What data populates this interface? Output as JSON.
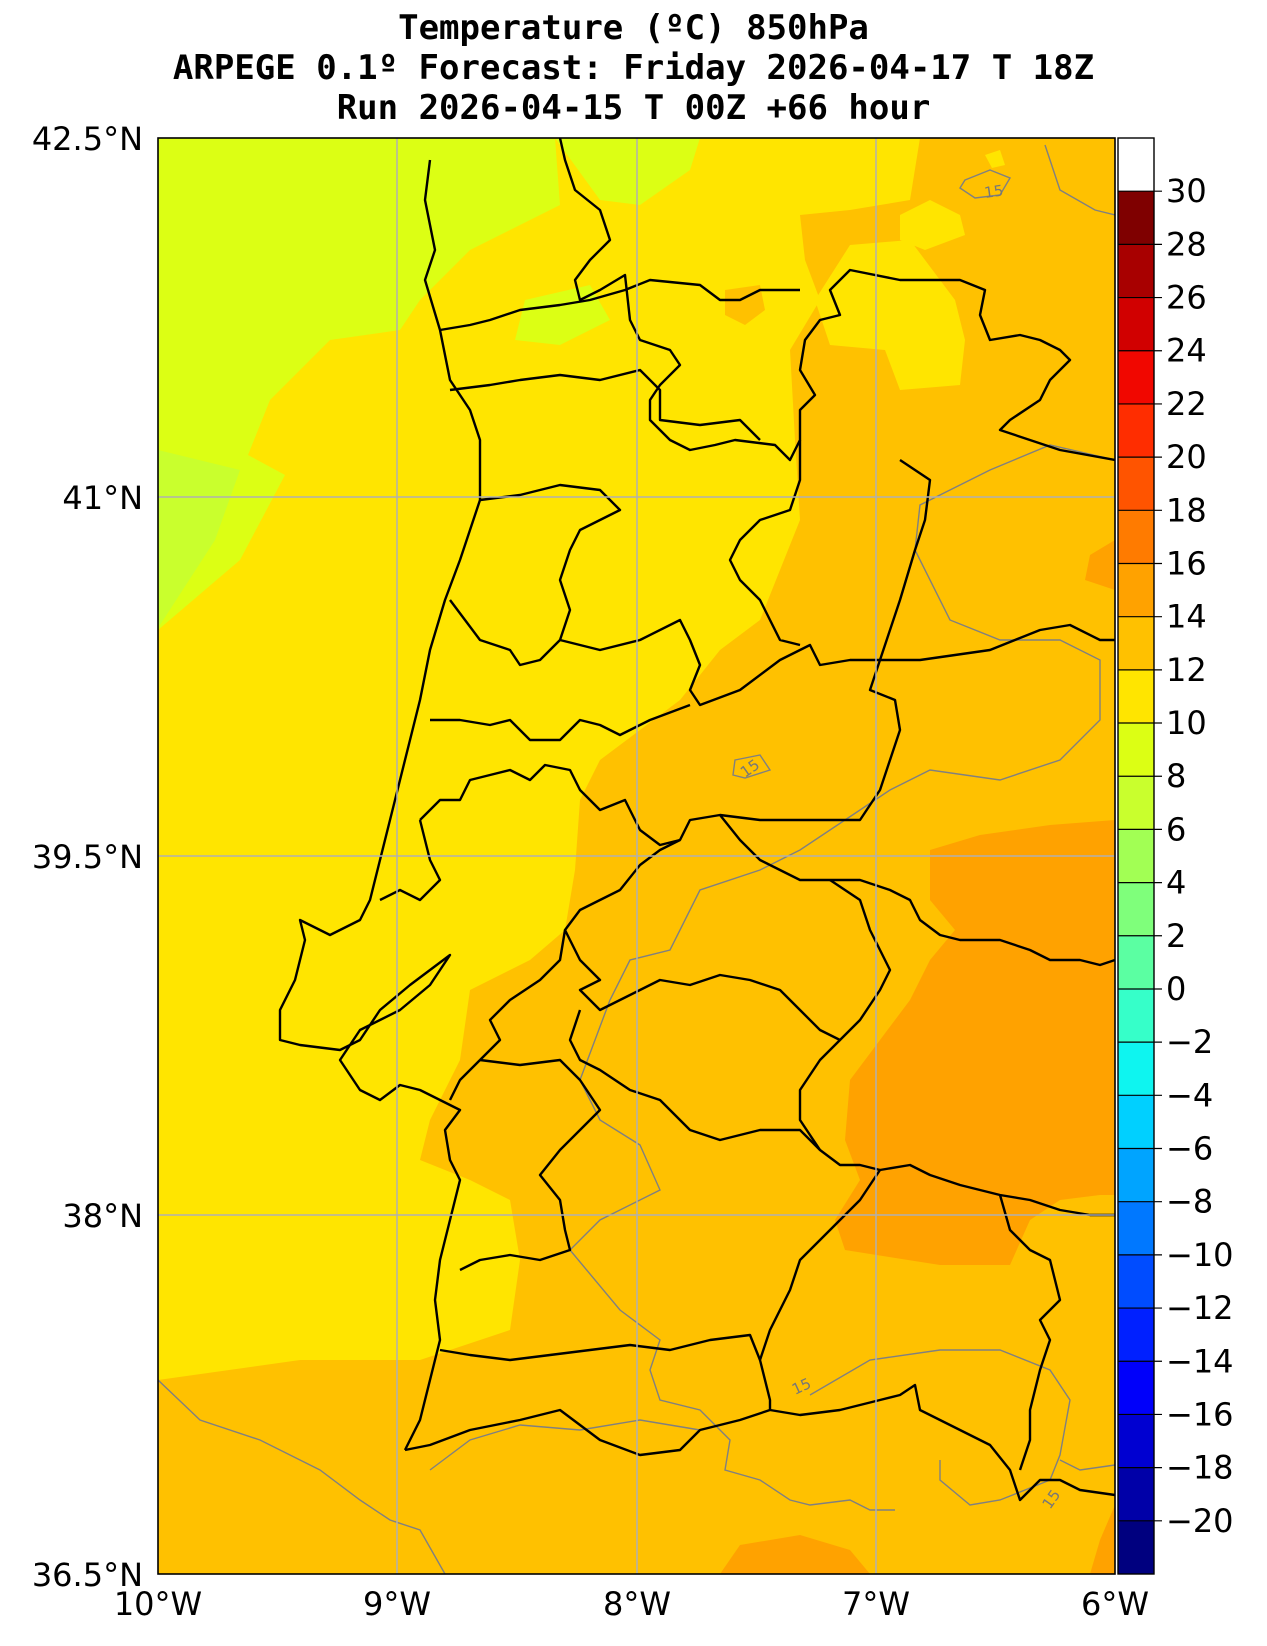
{
  "title": {
    "line1": "Temperature (ºC) 850hPa",
    "line2": "ARPEGE 0.1º Forecast: Friday 2026-04-17 T 18Z",
    "line3": "Run 2026-04-15 T 00Z +66 hour"
  },
  "map": {
    "lat_range": [
      36.5,
      42.5
    ],
    "lon_range": [
      -10,
      -6
    ],
    "lat_ticks": [
      "42.5°N",
      "41°N",
      "39.5°N",
      "38°N",
      "36.5°N"
    ],
    "lon_ticks": [
      "10°W",
      "9°W",
      "8°W",
      "7°W",
      "6°W"
    ],
    "grid": true,
    "contour_labels": [
      "15",
      "15",
      "15",
      "15"
    ]
  },
  "colorbar": {
    "labels": [
      "30",
      "28",
      "26",
      "24",
      "22",
      "20",
      "18",
      "16",
      "14",
      "12",
      "10",
      "8",
      "6",
      "4",
      "2",
      "0",
      "−2",
      "−4",
      "−6",
      "−8",
      "−10",
      "−12",
      "−14",
      "−16",
      "−18",
      "−20"
    ],
    "levels": [
      -22,
      -20,
      -18,
      -16,
      -14,
      -12,
      -10,
      -8,
      -6,
      -4,
      -2,
      0,
      2,
      4,
      6,
      8,
      10,
      12,
      14,
      16,
      18,
      20,
      22,
      24,
      26,
      28,
      30,
      32
    ],
    "colors": [
      "#00007f",
      "#0000a8",
      "#0000d1",
      "#0000fa",
      "#0020ff",
      "#004cff",
      "#0078ff",
      "#00a4ff",
      "#00d0ff",
      "#0ef5f0",
      "#36ffc9",
      "#5bffa2",
      "#7fff7b",
      "#a2ff54",
      "#c9ff2d",
      "#dcff14",
      "#ffe500",
      "#ffc100",
      "#ffa200",
      "#ff7b00",
      "#ff5400",
      "#ff2d00",
      "#f10700",
      "#d10000",
      "#a80000",
      "#7f0000"
    ]
  },
  "field_colors": {
    "lime": "#dcff14",
    "green": "#c9ff2d",
    "yellow": "#ffe500",
    "orange_light": "#ffc100",
    "orange": "#ffa200",
    "grid": "#b0b0b0",
    "contour": "#808080"
  }
}
